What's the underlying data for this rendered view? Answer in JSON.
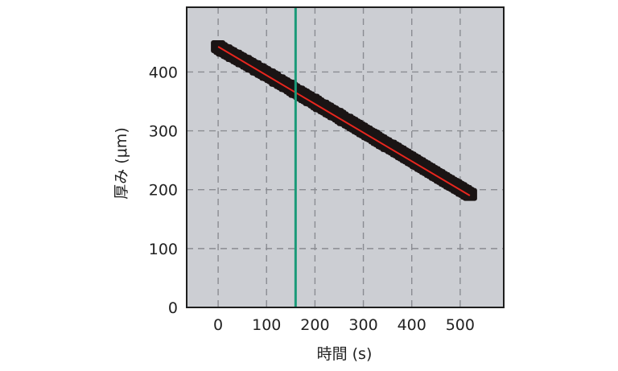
{
  "chart_data": {
    "type": "scatter",
    "title": "",
    "xlabel": "時間 (s)",
    "ylabel": "厚み (μm)",
    "xlim": [
      -65,
      590
    ],
    "ylim": [
      0,
      510
    ],
    "xticks": [
      0,
      100,
      200,
      300,
      400,
      500
    ],
    "yticks": [
      0,
      100,
      200,
      300,
      400
    ],
    "grid": true,
    "background_color": "#ccced3",
    "marker_color": "#1a1414",
    "fit_line_color": "#e8261e",
    "marker_line_color": "#1a9a78",
    "marker_line_x": 160,
    "series": [
      {
        "type": "scatter",
        "x": [
          0,
          5,
          10,
          15,
          20,
          25,
          30,
          35,
          40,
          45,
          50,
          55,
          60,
          65,
          70,
          75,
          80,
          85,
          90,
          95,
          100,
          105,
          110,
          115,
          120,
          125,
          130,
          135,
          140,
          145,
          150,
          155,
          160,
          165,
          170,
          175,
          180,
          185,
          190,
          195,
          200,
          205,
          210,
          215,
          220,
          225,
          230,
          235,
          240,
          245,
          250,
          255,
          260,
          265,
          270,
          275,
          280,
          285,
          290,
          295,
          300,
          305,
          310,
          315,
          320,
          325,
          330,
          335,
          340,
          345,
          350,
          355,
          360,
          365,
          370,
          375,
          380,
          385,
          390,
          395,
          400,
          405,
          410,
          415,
          420,
          425,
          430,
          435,
          440,
          445,
          450,
          455,
          460,
          465,
          470,
          475,
          480,
          485,
          490,
          495,
          500,
          505,
          510,
          515,
          520
        ],
        "y": [
          443,
          440,
          437,
          436,
          433,
          431,
          428,
          427,
          424,
          422,
          419,
          418,
          415,
          413,
          410,
          409,
          405,
          404,
          401,
          399,
          396,
          395,
          392,
          390,
          386,
          385,
          382,
          380,
          377,
          376,
          373,
          370,
          367,
          366,
          363,
          361,
          358,
          356,
          353,
          352,
          349,
          346,
          343,
          342,
          339,
          337,
          334,
          332,
          329,
          328,
          325,
          322,
          319,
          318,
          315,
          313,
          310,
          308,
          305,
          303,
          300,
          298,
          295,
          293,
          291,
          288,
          285,
          283,
          280,
          278,
          275,
          274,
          271,
          269,
          266,
          264,
          261,
          259,
          256,
          254,
          251,
          249,
          246,
          244,
          241,
          239,
          236,
          234,
          231,
          229,
          226,
          224,
          221,
          219,
          216,
          214,
          211,
          209,
          207,
          204,
          202,
          199,
          197,
          194,
          192
        ]
      },
      {
        "type": "line",
        "x": [
          0,
          520
        ],
        "y": [
          443,
          190
        ]
      }
    ]
  }
}
